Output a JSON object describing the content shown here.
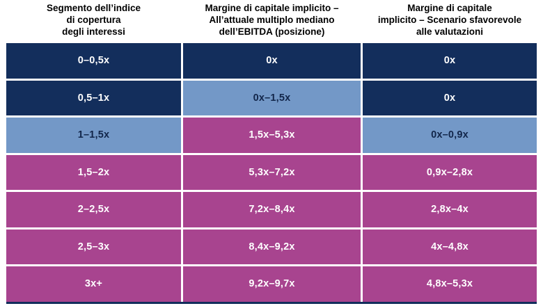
{
  "colors": {
    "navy": "#132E5C",
    "blue": "#7398C7",
    "magenta": "#A8448F",
    "cell_text_light": "#FFFFFF",
    "cell_text_dark": "#12264A",
    "header_text": "#000000",
    "separator": "#FFFFFF"
  },
  "table": {
    "headers": [
      {
        "text": "Segmento dell’indice\ndi copertura\ndegli interessi"
      },
      {
        "text": "Margine di capitale implicito –\nAll’attuale multiplo mediano\ndell’EBITDA (posizione)"
      },
      {
        "text": "Margine di capitale\nimplicito – Scenario sfavorevole\nalle valutazioni"
      }
    ],
    "rows": [
      {
        "cells": [
          {
            "text": "0–0,5x",
            "tone": "navy"
          },
          {
            "text": "0x",
            "tone": "navy"
          },
          {
            "text": "0x",
            "tone": "navy"
          }
        ]
      },
      {
        "cells": [
          {
            "text": "0,5–1x",
            "tone": "navy"
          },
          {
            "text": "0x–1,5x",
            "tone": "blue"
          },
          {
            "text": "0x",
            "tone": "navy"
          }
        ]
      },
      {
        "cells": [
          {
            "text": "1–1,5x",
            "tone": "blue"
          },
          {
            "text": "1,5x–5,3x",
            "tone": "magenta"
          },
          {
            "text": "0x–0,9x",
            "tone": "blue"
          }
        ]
      },
      {
        "cells": [
          {
            "text": "1,5–2x",
            "tone": "magenta"
          },
          {
            "text": "5,3x–7,2x",
            "tone": "magenta"
          },
          {
            "text": "0,9x–2,8x",
            "tone": "magenta"
          }
        ]
      },
      {
        "cells": [
          {
            "text": "2–2,5x",
            "tone": "magenta"
          },
          {
            "text": "7,2x–8,4x",
            "tone": "magenta"
          },
          {
            "text": "2,8x–4x",
            "tone": "magenta"
          }
        ]
      },
      {
        "cells": [
          {
            "text": "2,5–3x",
            "tone": "magenta"
          },
          {
            "text": "8,4x–9,2x",
            "tone": "magenta"
          },
          {
            "text": "4x–4,8x",
            "tone": "magenta"
          }
        ]
      },
      {
        "cells": [
          {
            "text": "3x+",
            "tone": "magenta"
          },
          {
            "text": "9,2x–9,7x",
            "tone": "magenta"
          },
          {
            "text": "4,8x–5,3x",
            "tone": "magenta"
          }
        ]
      }
    ]
  },
  "chart_data": {
    "type": "table",
    "columns": [
      "Segmento dell’indice di copertura degli interessi",
      "Margine di capitale implicito – All’attuale multiplo mediano dell’EBITDA (posizione)",
      "Margine di capitale implicito – Scenario sfavorevole alle valutazioni"
    ],
    "rows": [
      [
        "0–0,5x",
        "0x",
        "0x"
      ],
      [
        "0,5–1x",
        "0x–1,5x",
        "0x"
      ],
      [
        "1–1,5x",
        "1,5x–5,3x",
        "0x–0,9x"
      ],
      [
        "1,5–2x",
        "5,3x–7,2x",
        "0,9x–2,8x"
      ],
      [
        "2–2,5x",
        "7,2x–8,4x",
        "2,8x–4x"
      ],
      [
        "2,5–3x",
        "8,4x–9,2x",
        "4x–4,8x"
      ],
      [
        "3x+",
        "9,2x–9,7x",
        "4,8x–5,3x"
      ]
    ],
    "cell_tones": [
      [
        "navy",
        "navy",
        "navy"
      ],
      [
        "navy",
        "blue",
        "navy"
      ],
      [
        "blue",
        "magenta",
        "blue"
      ],
      [
        "magenta",
        "magenta",
        "magenta"
      ],
      [
        "magenta",
        "magenta",
        "magenta"
      ],
      [
        "magenta",
        "magenta",
        "magenta"
      ],
      [
        "magenta",
        "magenta",
        "magenta"
      ]
    ],
    "legend_position": "none",
    "grid": false
  }
}
